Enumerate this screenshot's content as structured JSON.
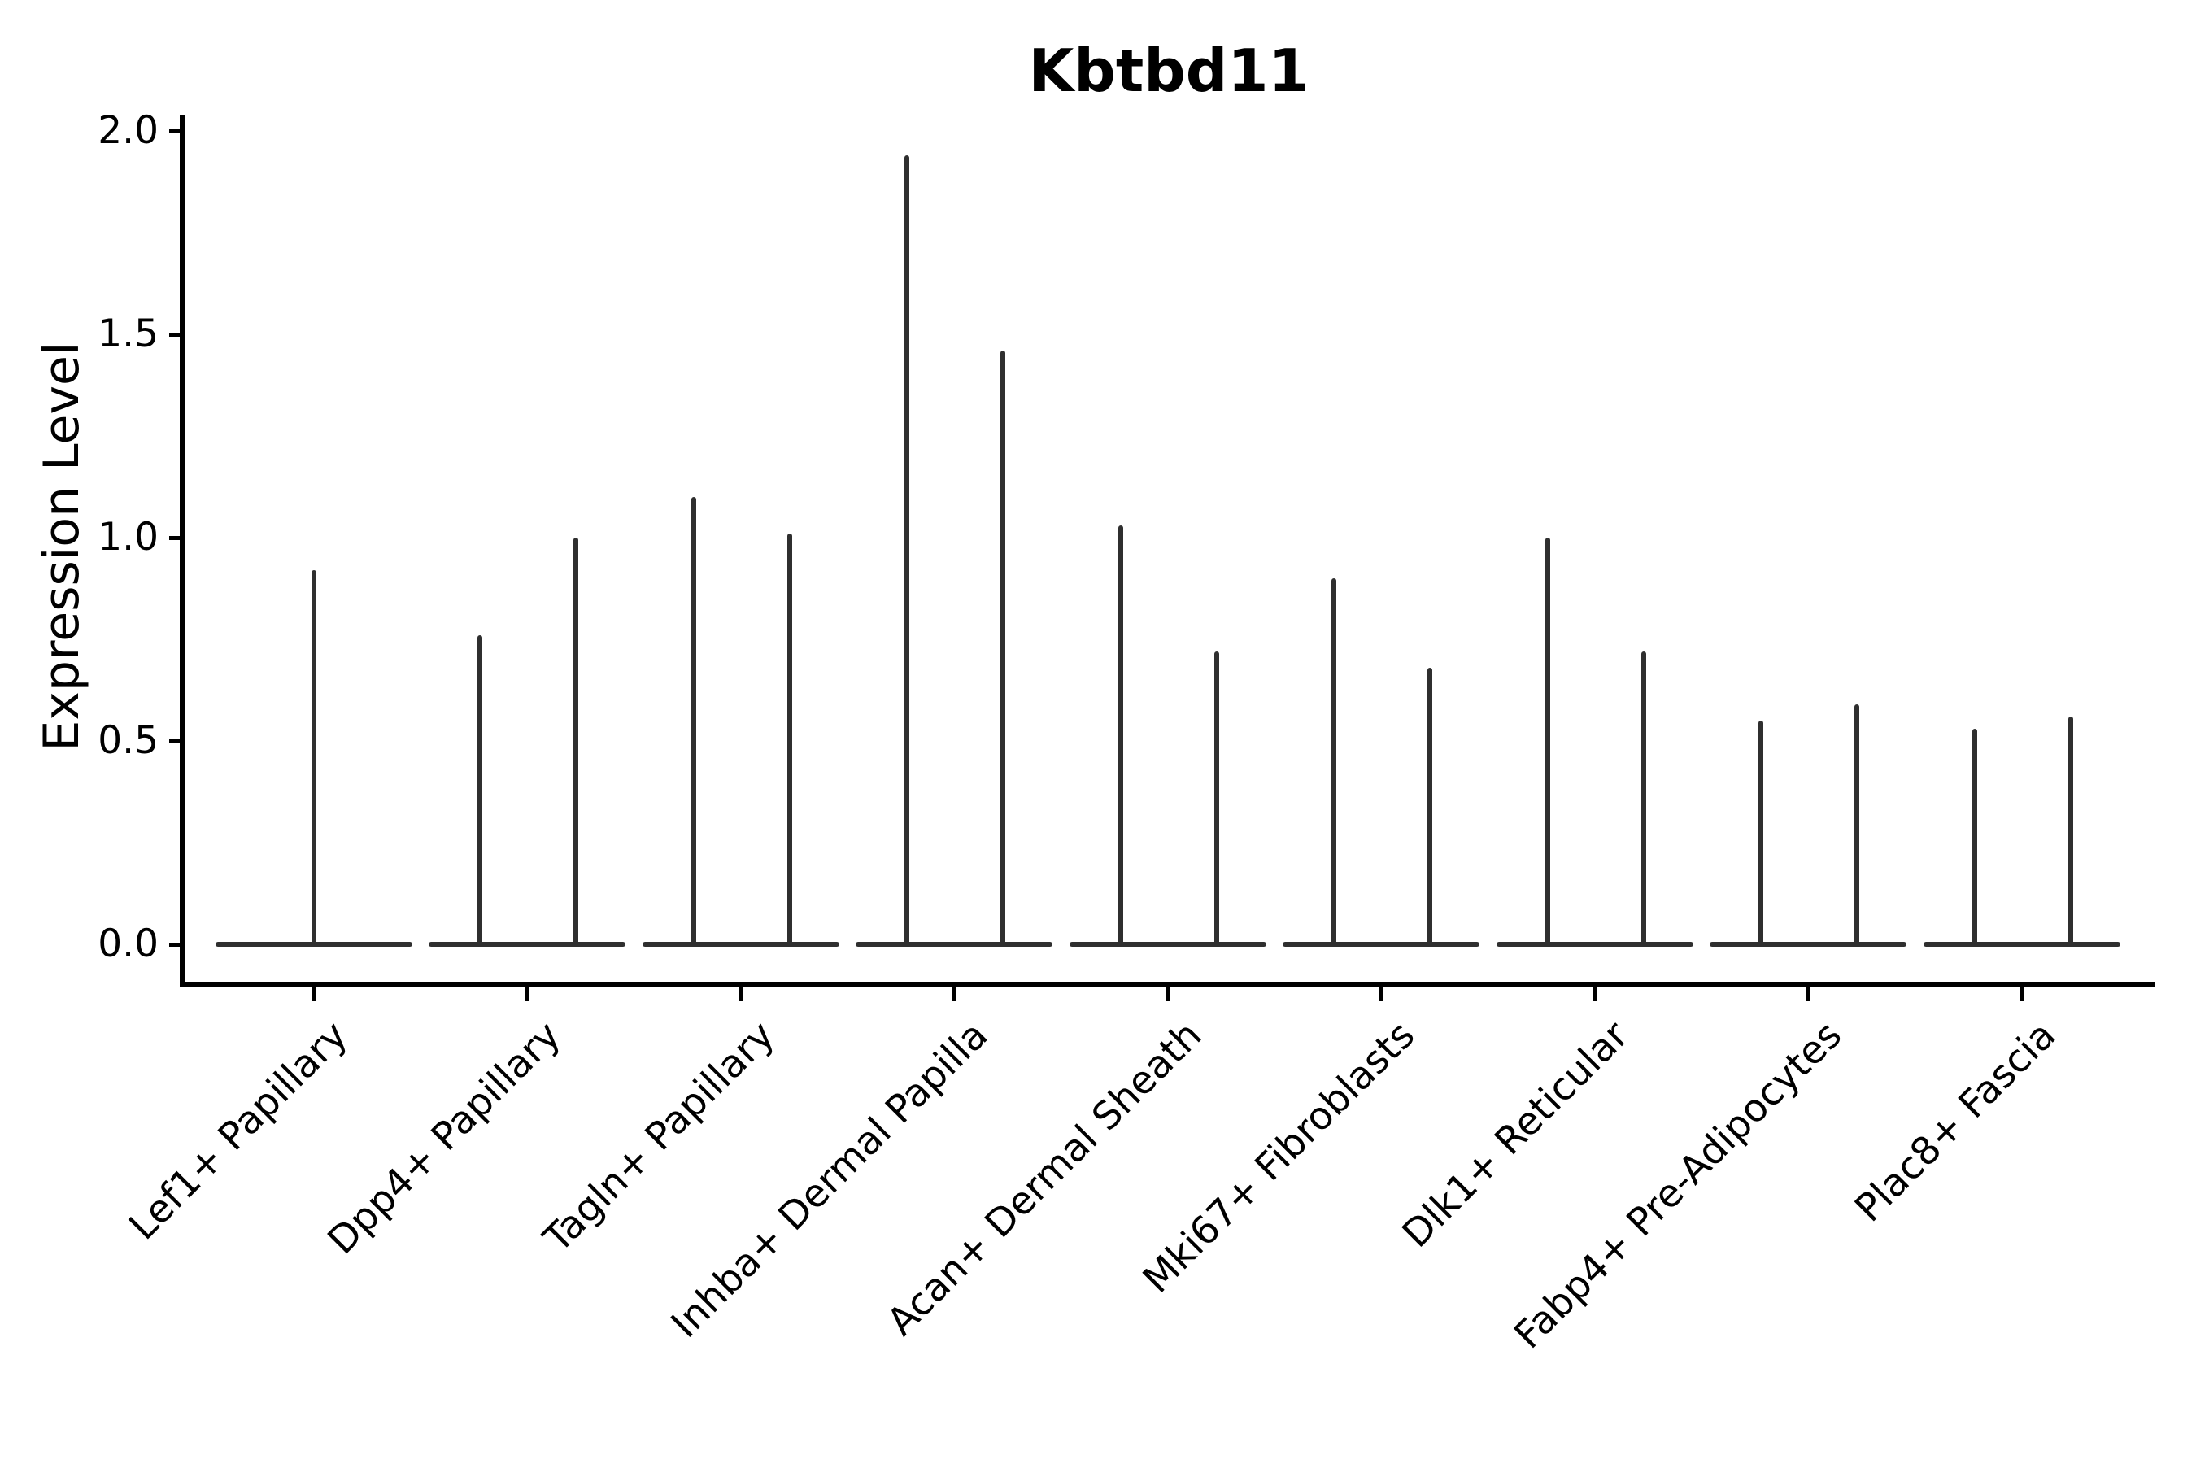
{
  "figure": {
    "title": "Kbtbd11",
    "y_axis": {
      "label": "Expression Level",
      "tick_labels": [
        "2.0",
        "1.5",
        "1.0",
        "0.5",
        "0.0"
      ],
      "tick_values": [
        2.0,
        1.5,
        1.0,
        0.5,
        0.0
      ]
    },
    "x_axis": {
      "categories": [
        "Lef1+ Papillary",
        "Dpp4+ Papillary",
        "Tagln+ Papillary",
        "Inhba+ Dermal Papilla",
        "Acan+ Dermal Sheath",
        "Mki67+ Fibroblasts",
        "Dlk1+ Reticular",
        "Fabp4+ Pre-Adipocytes",
        "Plac8+ Fascia"
      ]
    }
  },
  "chart_data": {
    "type": "violin",
    "title": "Kbtbd11",
    "xlabel": "",
    "ylabel": "Expression Level",
    "ylim": [
      -0.1,
      2.04
    ],
    "yticks": [
      0.0,
      0.5,
      1.0,
      1.5,
      2.0
    ],
    "grid": false,
    "legend": false,
    "categories": [
      "Lef1+ Papillary",
      "Dpp4+ Papillary",
      "Tagln+ Papillary",
      "Inhba+ Dermal Papilla",
      "Acan+ Dermal Sheath",
      "Mki67+ Fibroblasts",
      "Dlk1+ Reticular",
      "Fabp4+ Pre-Adipocytes",
      "Plac8+ Fascia"
    ],
    "series": [
      {
        "category": "Lef1+ Papillary",
        "spike_values": [
          0.92
        ],
        "spike_offsets": [
          0
        ],
        "baseline_value": 0.0
      },
      {
        "category": "Dpp4+ Papillary",
        "spike_values": [
          0.76,
          1.0
        ],
        "spike_offsets": [
          -0.22,
          0.23
        ],
        "baseline_value": 0.0
      },
      {
        "category": "Tagln+ Papillary",
        "spike_values": [
          1.1,
          1.01
        ],
        "spike_offsets": [
          -0.22,
          0.23
        ],
        "baseline_value": 0.0
      },
      {
        "category": "Inhba+ Dermal Papilla",
        "spike_values": [
          1.94,
          1.46
        ],
        "spike_offsets": [
          -0.22,
          0.23
        ],
        "baseline_value": 0.0
      },
      {
        "category": "Acan+ Dermal Sheath",
        "spike_values": [
          1.03,
          0.72
        ],
        "spike_offsets": [
          -0.22,
          0.23
        ],
        "baseline_value": 0.0
      },
      {
        "category": "Mki67+ Fibroblasts",
        "spike_values": [
          0.9,
          0.68
        ],
        "spike_offsets": [
          -0.22,
          0.23
        ],
        "baseline_value": 0.0
      },
      {
        "category": "Dlk1+ Reticular",
        "spike_values": [
          1.0,
          0.72
        ],
        "spike_offsets": [
          -0.22,
          0.23
        ],
        "baseline_value": 0.0
      },
      {
        "category": "Fabp4+ Pre-Adipocytes",
        "spike_values": [
          0.55,
          0.59
        ],
        "spike_offsets": [
          -0.22,
          0.23
        ],
        "baseline_value": 0.0
      },
      {
        "category": "Plac8+ Fascia",
        "spike_values": [
          0.53,
          0.56
        ],
        "spike_offsets": [
          -0.22,
          0.23
        ],
        "baseline_value": 0.0
      }
    ],
    "violin_half_width": 0.46
  },
  "colors": {
    "violin_line": "#2f2f2f",
    "axis": "#000000",
    "text": "#000000",
    "background": "#ffffff"
  }
}
